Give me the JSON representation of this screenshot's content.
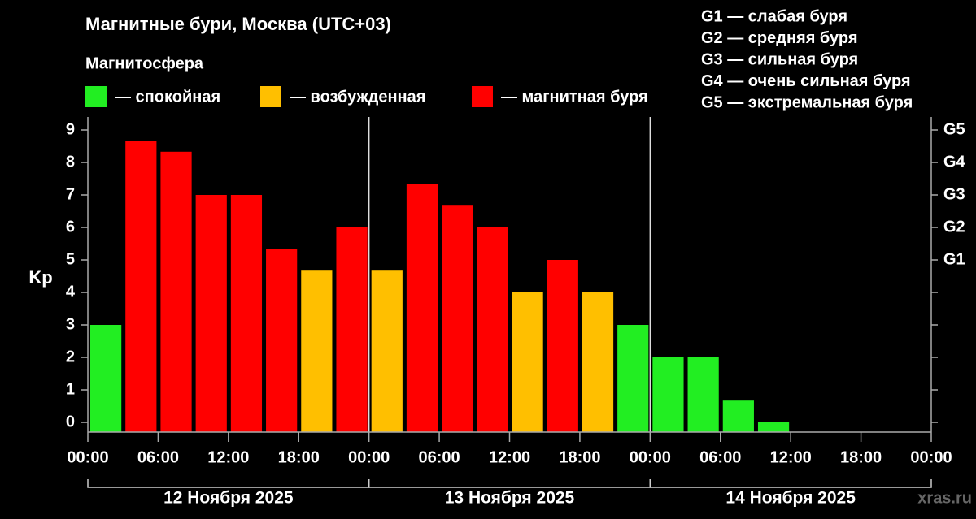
{
  "chart_data": {
    "type": "bar",
    "title": "Магнитные бури, Москва (UTC+03)",
    "subtitle": "Магнитосфера",
    "ylabel": "Kp",
    "watermark": "xras.ru",
    "storm_levels": [
      "G1 — слабая буря",
      "G2 — средняя буря",
      "G3 — сильная буря",
      "G4 — очень сильная буря",
      "G5 — экстремальная буря"
    ],
    "days": [
      "12 Ноября 2025",
      "13 Ноября 2025",
      "14 Ноября 2025"
    ],
    "x": [
      0,
      3,
      6,
      9,
      12,
      15,
      18,
      21,
      24,
      27,
      30,
      33,
      36,
      39,
      42,
      45,
      48,
      51,
      54,
      57,
      60,
      63,
      66,
      69
    ],
    "bar_width": 3,
    "series": [
      {
        "name": "— спокойная",
        "color": "#22ee22",
        "values": [
          3,
          null,
          null,
          null,
          null,
          null,
          null,
          null,
          null,
          null,
          null,
          null,
          null,
          null,
          null,
          3,
          2,
          2,
          0.67,
          0,
          null,
          null,
          null,
          null
        ]
      },
      {
        "name": "— возбужденная",
        "color": "#ffbf00",
        "values": [
          null,
          null,
          null,
          null,
          null,
          null,
          4.67,
          null,
          4.67,
          null,
          null,
          null,
          4,
          null,
          4,
          null,
          null,
          null,
          null,
          null,
          null,
          null,
          null,
          null
        ]
      },
      {
        "name": "— магнитная буря",
        "color": "#ff0000",
        "values": [
          null,
          8.67,
          8.33,
          7,
          7,
          5.33,
          null,
          6,
          null,
          7.33,
          6.67,
          6,
          null,
          5,
          null,
          null,
          null,
          null,
          null,
          null,
          null,
          null,
          null,
          null
        ]
      }
    ],
    "xlim": [
      0,
      72
    ],
    "xticks": [
      {
        "value": 0,
        "label": "00:00"
      },
      {
        "value": 6,
        "label": "06:00"
      },
      {
        "value": 12,
        "label": "12:00"
      },
      {
        "value": 18,
        "label": "18:00"
      },
      {
        "value": 24,
        "label": "00:00"
      },
      {
        "value": 30,
        "label": "06:00"
      },
      {
        "value": 36,
        "label": "12:00"
      },
      {
        "value": 42,
        "label": "18:00"
      },
      {
        "value": 48,
        "label": "00:00"
      },
      {
        "value": 54,
        "label": "06:00"
      },
      {
        "value": 60,
        "label": "12:00"
      },
      {
        "value": 66,
        "label": "18:00"
      },
      {
        "value": 72,
        "label": "00:00"
      }
    ],
    "ylim": [
      -0.3,
      9.4
    ],
    "yticks": [
      0,
      1,
      2,
      3,
      4,
      5,
      6,
      7,
      8,
      9
    ],
    "y2lim": [
      -0.3,
      9.4
    ],
    "y2ticks": [
      {
        "value": 5,
        "label": "G1"
      },
      {
        "value": 6,
        "label": "G2"
      },
      {
        "value": 7,
        "label": "G3"
      },
      {
        "value": 8,
        "label": "G4"
      },
      {
        "value": 9,
        "label": "G5"
      }
    ]
  }
}
